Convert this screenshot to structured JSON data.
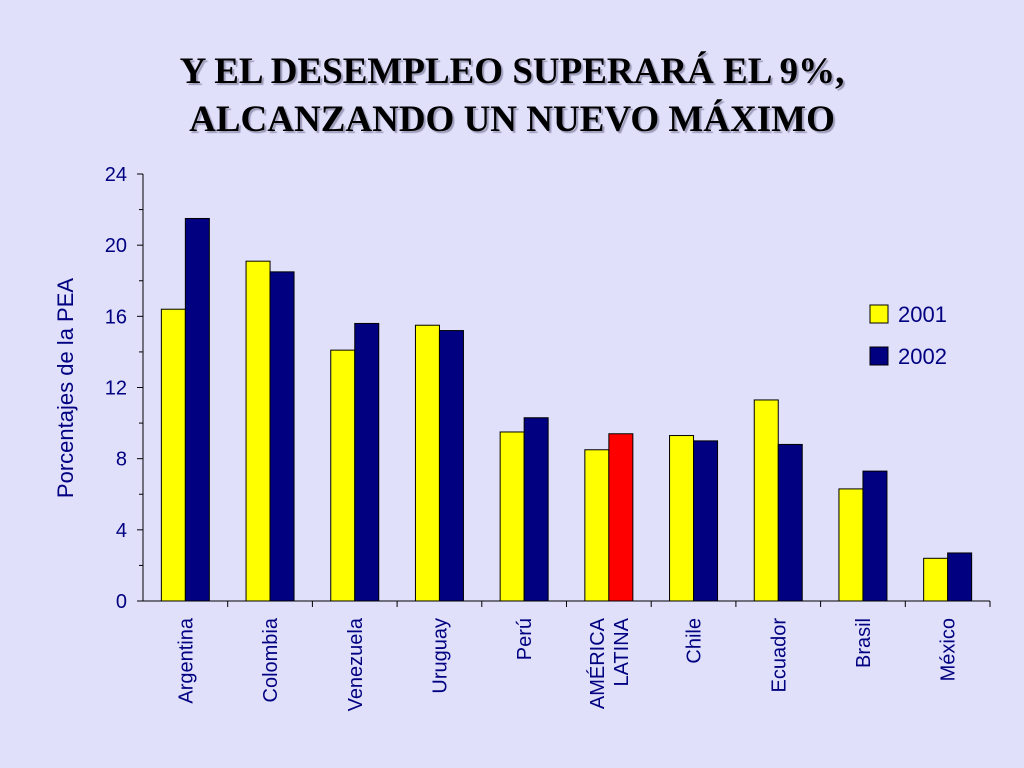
{
  "slide": {
    "title_line1": "Y EL DESEMPLEO SUPERARÁ EL 9%,",
    "title_line2": "ALCANZANDO UN NUEVO MÁXIMO"
  },
  "chart_data": {
    "type": "bar",
    "title": "Y EL DESEMPLEO SUPERARÁ EL 9%, ALCANZANDO UN NUEVO MÁXIMO",
    "ylabel": "Porcentajes de la PEA",
    "xlabel": "",
    "ylim": [
      0,
      24
    ],
    "yticks": [
      0,
      4,
      8,
      12,
      16,
      20,
      24
    ],
    "categories": [
      [
        "Argentina"
      ],
      [
        "Colombia"
      ],
      [
        "Venezuela"
      ],
      [
        "Uruguay"
      ],
      [
        "Perú"
      ],
      [
        "AMÉRICA",
        "LATINA"
      ],
      [
        "Chile"
      ],
      [
        "Ecuador"
      ],
      [
        "Brasil"
      ],
      [
        "México"
      ]
    ],
    "series": [
      {
        "name": "2001",
        "color": "#ffff00",
        "values": [
          16.4,
          19.1,
          14.1,
          15.5,
          9.5,
          8.5,
          9.3,
          11.3,
          6.3,
          2.4
        ]
      },
      {
        "name": "2002",
        "color": "#000080",
        "highlight": {
          "category_index": 5,
          "color": "#ff0000"
        },
        "values": [
          21.5,
          18.5,
          15.6,
          15.2,
          10.3,
          9.4,
          9.0,
          8.8,
          7.3,
          2.7
        ]
      }
    ],
    "legend_position": "right",
    "grid": false
  }
}
